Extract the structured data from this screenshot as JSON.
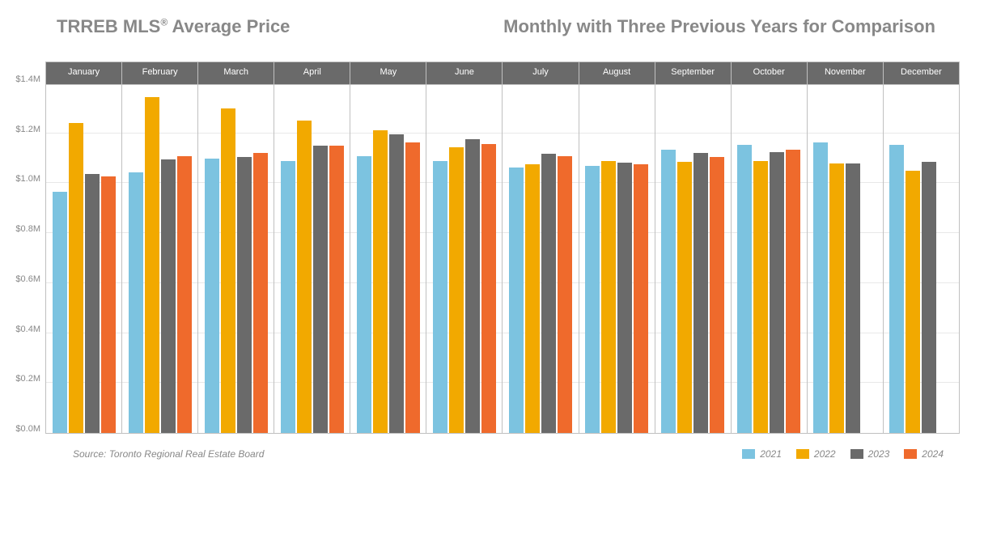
{
  "title_left_pre": "TRREB MLS",
  "title_left_sup": "®",
  "title_left_post": " Average Price",
  "title_right": "Monthly with Three Previous Years for Comparison",
  "source": "Source: Toronto Regional Real Estate Board",
  "chart": {
    "type": "bar",
    "background_color": "#ffffff",
    "panel_border_color": "#c0c0c0",
    "grid_color": "#e8e8e8",
    "header_bg": "#6a6a6a",
    "header_text_color": "#ffffff",
    "axis_text_color": "#888888",
    "ylim": [
      0,
      1.4
    ],
    "ytick_step": 0.2,
    "ytick_labels": [
      "$0.0M",
      "$0.2M",
      "$0.4M",
      "$0.6M",
      "$0.8M",
      "$1.0M",
      "$1.2M",
      "$1.4M"
    ],
    "categories": [
      "January",
      "February",
      "March",
      "April",
      "May",
      "June",
      "July",
      "August",
      "September",
      "October",
      "November",
      "December"
    ],
    "series": [
      {
        "name": "2021",
        "color": "#7cc3e0",
        "values": [
          0.965,
          1.045,
          1.098,
          1.09,
          1.108,
          1.088,
          1.062,
          1.07,
          1.135,
          1.155,
          1.165,
          1.155
        ]
      },
      {
        "name": "2022",
        "color": "#f2a900",
        "values": [
          1.242,
          1.345,
          1.3,
          1.252,
          1.211,
          1.145,
          1.075,
          1.09,
          1.087,
          1.09,
          1.08,
          1.05
        ]
      },
      {
        "name": "2023",
        "color": "#6a6a6a",
        "values": [
          1.038,
          1.095,
          1.105,
          1.152,
          1.195,
          1.178,
          1.117,
          1.083,
          1.12,
          1.123,
          1.08,
          1.085
        ]
      },
      {
        "name": "2024",
        "color": "#ef6a2c",
        "values": [
          1.028,
          1.11,
          1.122,
          1.152,
          1.165,
          1.158,
          1.108,
          1.075,
          1.105,
          1.135,
          null,
          null
        ]
      }
    ],
    "title_fontsize": 22,
    "header_fontsize": 11,
    "axis_fontsize": 11,
    "legend_fontsize": 12,
    "source_fontsize": 12
  }
}
